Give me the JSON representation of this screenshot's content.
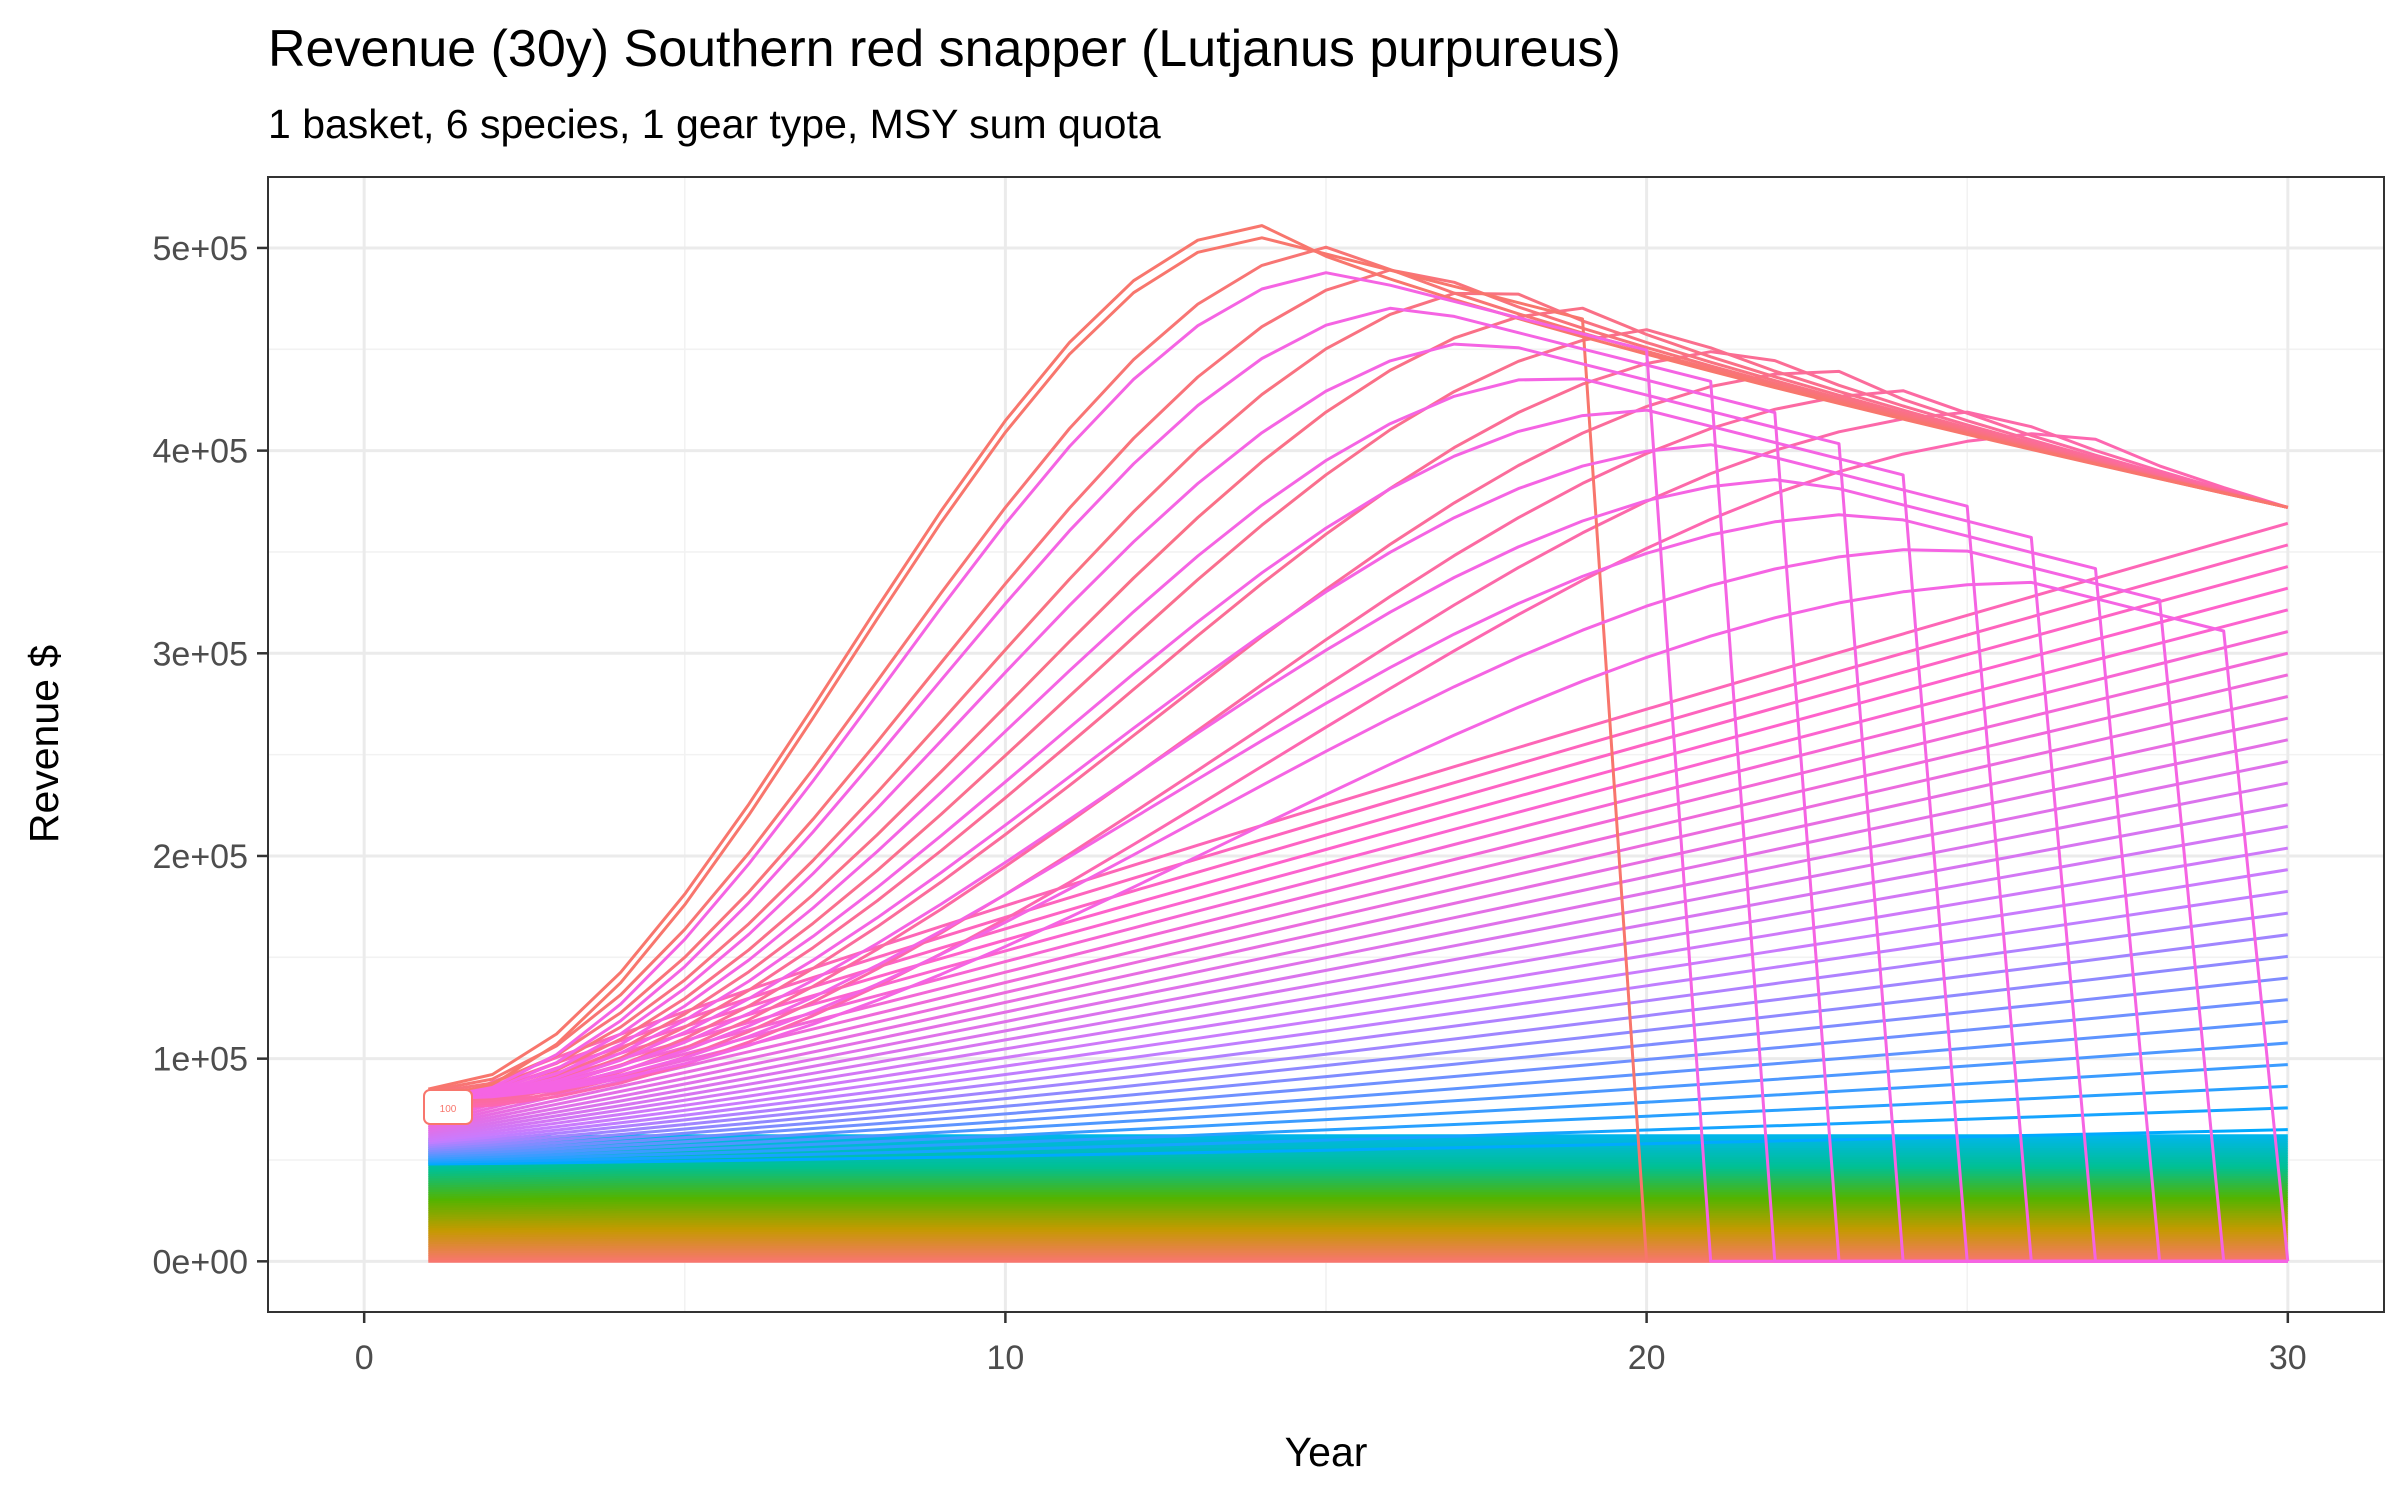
{
  "chart_data": {
    "type": "line",
    "title": "Revenue (30y) Southern red snapper (Lutjanus purpureus)",
    "subtitle": "1 basket, 6 species, 1 gear type, MSY sum quota",
    "xlabel": "Year",
    "ylabel": "Revenue $",
    "xlim": [
      -1.5,
      31.5
    ],
    "ylim": [
      -25000,
      535000
    ],
    "x_ticks": [
      0,
      10,
      20,
      30
    ],
    "x_tick_labels": [
      "0",
      "10",
      "20",
      "30"
    ],
    "y_ticks": [
      0,
      100000,
      200000,
      300000,
      400000,
      500000
    ],
    "y_tick_labels": [
      "0e+00",
      "1e+05",
      "2e+05",
      "3e+05",
      "4e+05",
      "5e+05"
    ],
    "grid": true,
    "legend": "none",
    "series_count_note": "100",
    "end_label": "100",
    "series_groups": {
      "rising": {
        "count": 40,
        "x_start": 1,
        "start_values_range": [
          48000,
          85000
        ],
        "end_values_at_30": [
          1,
          372000
        ],
        "color_gradient": [
          "#00a9ff",
          "#c77cff",
          "#ff61cc",
          "#f8766d"
        ]
      },
      "collapsing": {
        "collapse_years": [
          19.8,
          20.8,
          21.8,
          22.8,
          23.8,
          24.8,
          25.8,
          26.8,
          27.8,
          28.8,
          29.8
        ],
        "color": "#f564e3"
      },
      "flat": {
        "count": 55,
        "value_range": [
          0,
          62000
        ],
        "color_gradient": [
          "#f8766d",
          "#c49a00",
          "#53b400",
          "#00c094",
          "#00b6eb"
        ]
      }
    },
    "peak": {
      "x": 14,
      "y": 511000
    }
  }
}
